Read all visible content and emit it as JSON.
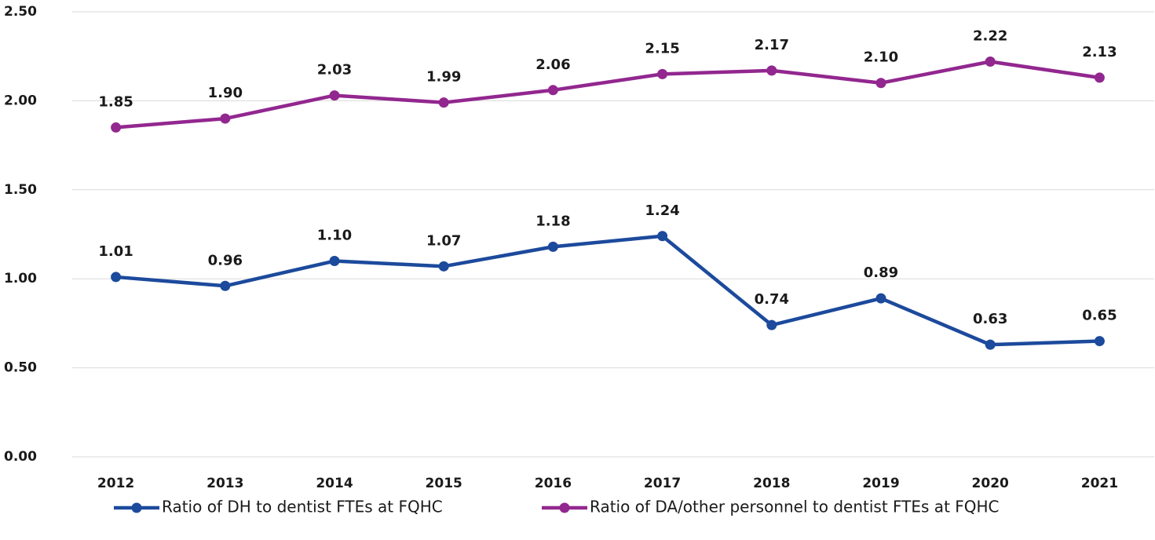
{
  "chart_data": {
    "type": "line",
    "categories": [
      "2012",
      "2013",
      "2014",
      "2015",
      "2016",
      "2017",
      "2018",
      "2019",
      "2020",
      "2021"
    ],
    "series": [
      {
        "name": "Ratio of DH to dentist FTEs at FQHC",
        "color": "#1c4a9c",
        "values": [
          1.01,
          0.96,
          1.1,
          1.07,
          1.18,
          1.24,
          0.74,
          0.89,
          0.63,
          0.65
        ],
        "value_labels": [
          "1.01",
          "0.96",
          "1.10",
          "1.07",
          "1.18",
          "1.24",
          "0.74",
          "0.89",
          "0.63",
          "0.65"
        ]
      },
      {
        "name": "Ratio of DA/other personnel to dentist FTEs at FQHC",
        "color": "#92278f",
        "values": [
          1.85,
          1.9,
          2.03,
          1.99,
          2.06,
          2.15,
          2.17,
          2.1,
          2.22,
          2.13
        ],
        "value_labels": [
          "1.85",
          "1.90",
          "2.03",
          "1.99",
          "2.06",
          "2.15",
          "2.17",
          "2.10",
          "2.22",
          "2.13"
        ]
      }
    ],
    "ylim": [
      0,
      2.5
    ],
    "yticks": [
      {
        "value": 0,
        "label": "0.00"
      },
      {
        "value": 0.5,
        "label": "0.50"
      },
      {
        "value": 1,
        "label": "1.00"
      },
      {
        "value": 1.5,
        "label": "1.50"
      },
      {
        "value": 2,
        "label": "2.00"
      },
      {
        "value": 2.5,
        "label": "2.50"
      }
    ],
    "grid": true,
    "legend": "bottom"
  }
}
